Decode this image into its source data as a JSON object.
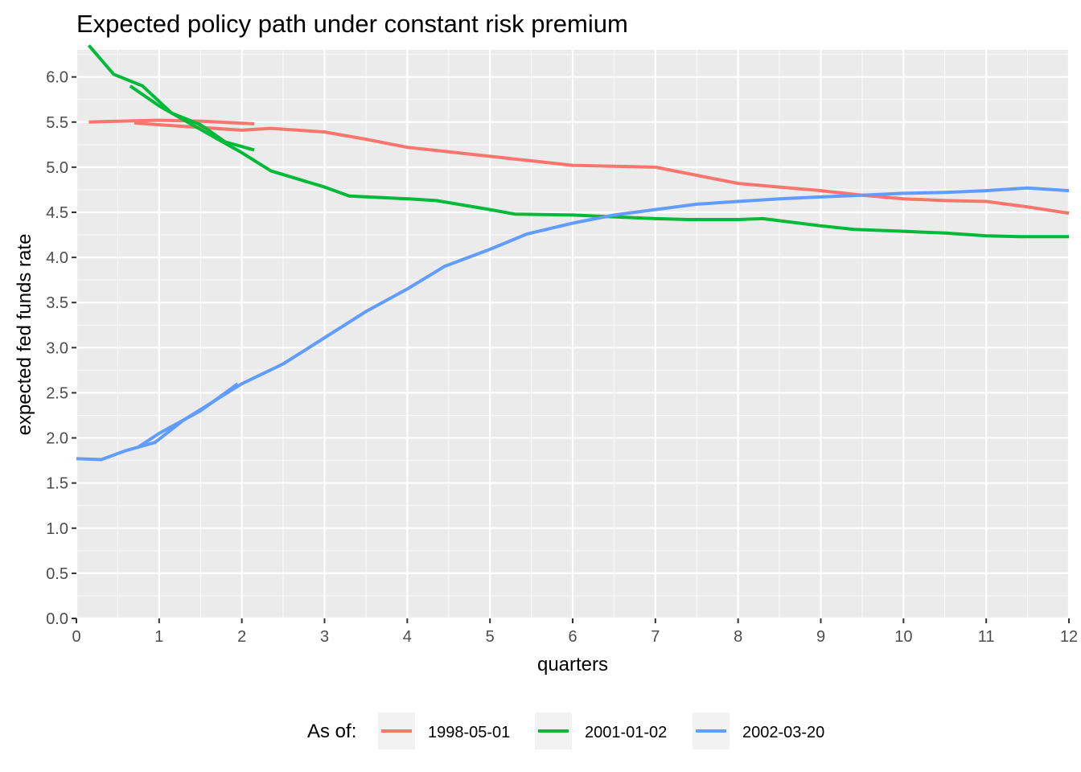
{
  "chart_data": {
    "type": "line",
    "title": "Expected policy path under constant risk premium",
    "xlabel": "quarters",
    "ylabel": "expected fed funds rate",
    "xlim": [
      0,
      12
    ],
    "ylim": [
      0,
      6.3
    ],
    "x_ticks": [
      "0",
      "1",
      "2",
      "3",
      "4",
      "5",
      "6",
      "7",
      "8",
      "9",
      "10",
      "11",
      "12"
    ],
    "y_ticks": [
      "0.0",
      "0.5",
      "1.0",
      "1.5",
      "2.0",
      "2.5",
      "3.0",
      "3.5",
      "4.0",
      "4.5",
      "5.0",
      "5.5",
      "6.0"
    ],
    "grid": true,
    "legend": {
      "title": "As of:",
      "position": "bottom"
    },
    "series": [
      {
        "name": "1998-05-01",
        "color": "#F8766D",
        "segments": [
          [
            [
              0.15,
              5.5
            ],
            [
              0.5,
              5.51
            ],
            [
              1.0,
              5.52
            ],
            [
              1.5,
              5.51
            ],
            [
              2.15,
              5.48
            ]
          ],
          [
            [
              0.7,
              5.49
            ],
            [
              1.0,
              5.47
            ],
            [
              1.5,
              5.44
            ],
            [
              2.0,
              5.41
            ],
            [
              2.35,
              5.43
            ],
            [
              3.0,
              5.39
            ],
            [
              3.5,
              5.31
            ],
            [
              4.0,
              5.22
            ],
            [
              4.5,
              5.17
            ],
            [
              5.0,
              5.12
            ],
            [
              5.5,
              5.07
            ],
            [
              6.0,
              5.02
            ],
            [
              6.5,
              5.01
            ],
            [
              7.0,
              5.0
            ],
            [
              7.5,
              4.91
            ],
            [
              8.0,
              4.82
            ],
            [
              8.5,
              4.78
            ],
            [
              9.0,
              4.74
            ],
            [
              9.5,
              4.69
            ],
            [
              10.0,
              4.65
            ],
            [
              10.5,
              4.63
            ],
            [
              11.0,
              4.62
            ],
            [
              11.5,
              4.56
            ],
            [
              12.0,
              4.49
            ]
          ]
        ]
      },
      {
        "name": "2001-01-02",
        "color": "#00BA38",
        "segments": [
          [
            [
              0.15,
              6.35
            ],
            [
              0.45,
              6.03
            ],
            [
              0.8,
              5.9
            ],
            [
              1.15,
              5.6
            ],
            [
              1.5,
              5.47
            ],
            [
              1.8,
              5.28
            ],
            [
              2.15,
              5.19
            ]
          ],
          [
            [
              0.65,
              5.9
            ],
            [
              1.0,
              5.68
            ],
            [
              1.4,
              5.47
            ],
            [
              2.0,
              5.16
            ],
            [
              2.35,
              4.96
            ],
            [
              3.0,
              4.78
            ],
            [
              3.3,
              4.68
            ],
            [
              4.0,
              4.65
            ],
            [
              4.35,
              4.63
            ],
            [
              5.0,
              4.53
            ],
            [
              5.3,
              4.48
            ],
            [
              6.0,
              4.47
            ],
            [
              6.5,
              4.45
            ],
            [
              7.0,
              4.43
            ],
            [
              7.4,
              4.42
            ],
            [
              8.0,
              4.42
            ],
            [
              8.3,
              4.43
            ],
            [
              9.0,
              4.35
            ],
            [
              9.4,
              4.31
            ],
            [
              10.0,
              4.29
            ],
            [
              10.5,
              4.27
            ],
            [
              11.0,
              4.24
            ],
            [
              11.4,
              4.23
            ],
            [
              12.0,
              4.23
            ]
          ]
        ]
      },
      {
        "name": "2002-03-20",
        "color": "#619CFF",
        "segments": [
          [
            [
              0.75,
              1.9
            ],
            [
              1.0,
              2.05
            ],
            [
              1.5,
              2.3
            ],
            [
              1.95,
              2.6
            ]
          ],
          [
            [
              0.0,
              1.77
            ],
            [
              0.3,
              1.76
            ],
            [
              0.6,
              1.86
            ],
            [
              0.95,
              1.95
            ],
            [
              1.3,
              2.2
            ],
            [
              2.0,
              2.6
            ],
            [
              2.5,
              2.82
            ],
            [
              3.0,
              3.11
            ],
            [
              3.5,
              3.4
            ],
            [
              4.0,
              3.65
            ],
            [
              4.45,
              3.9
            ],
            [
              5.0,
              4.09
            ],
            [
              5.45,
              4.26
            ],
            [
              6.0,
              4.38
            ],
            [
              6.5,
              4.47
            ],
            [
              7.0,
              4.53
            ],
            [
              7.5,
              4.59
            ],
            [
              8.0,
              4.62
            ],
            [
              8.5,
              4.65
            ],
            [
              9.0,
              4.67
            ],
            [
              9.5,
              4.69
            ],
            [
              10.0,
              4.71
            ],
            [
              10.5,
              4.72
            ],
            [
              11.0,
              4.74
            ],
            [
              11.5,
              4.77
            ],
            [
              12.0,
              4.74
            ]
          ]
        ]
      }
    ]
  }
}
